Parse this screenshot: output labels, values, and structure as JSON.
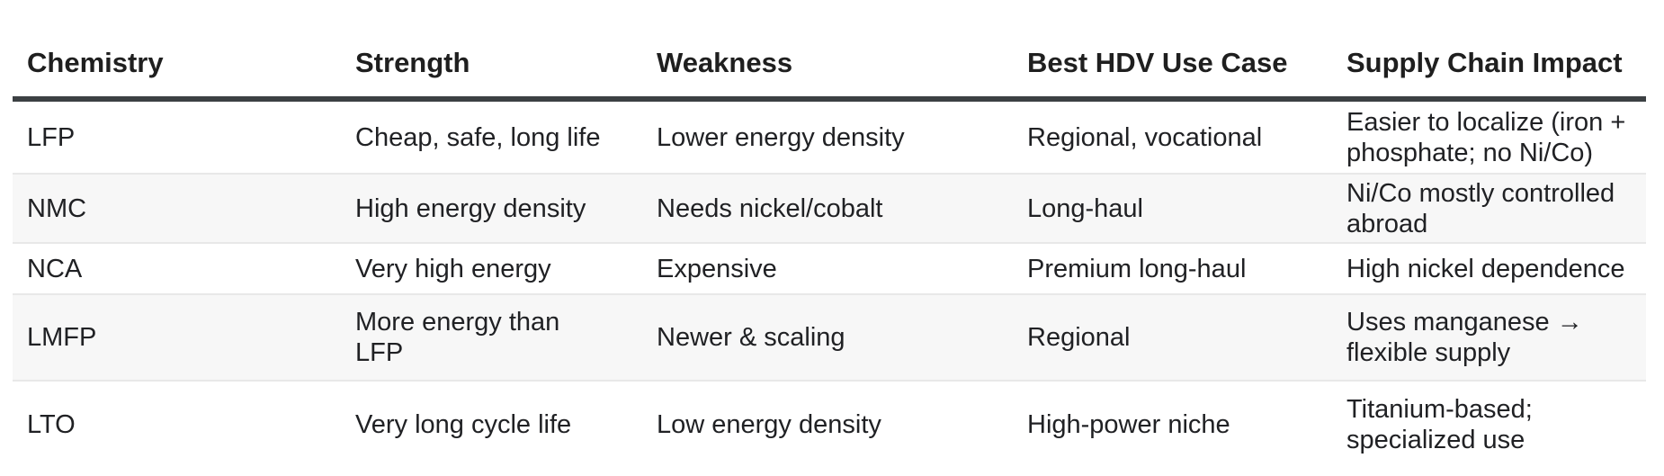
{
  "table": {
    "columns": [
      {
        "label": "Chemistry"
      },
      {
        "label": "Strength"
      },
      {
        "label": "Weakness"
      },
      {
        "label": "Best HDV Use Case"
      },
      {
        "label": "Supply Chain Impact"
      }
    ],
    "rows": [
      {
        "chemistry": "LFP",
        "strength": "Cheap, safe, long life",
        "weakness": "Lower energy density",
        "best_hdv_use_case": "Regional, vocational",
        "supply_chain_impact": "Easier to localize (iron +\nphosphate; no Ni/Co)"
      },
      {
        "chemistry": "NMC",
        "strength": "High energy density",
        "weakness": "Needs nickel/cobalt",
        "best_hdv_use_case": "Long-haul",
        "supply_chain_impact": "Ni/Co mostly controlled\nabroad"
      },
      {
        "chemistry": "NCA",
        "strength": "Very high energy",
        "weakness": "Expensive",
        "best_hdv_use_case": "Premium long-haul",
        "supply_chain_impact": "High nickel dependence"
      },
      {
        "chemistry": "LMFP",
        "strength": "More energy than\nLFP",
        "weakness": "Newer & scaling",
        "best_hdv_use_case": "Regional",
        "supply_chain_impact": "Uses manganese →\nflexible supply"
      },
      {
        "chemistry": "LTO",
        "strength": "Very long cycle life",
        "weakness": "Low energy density",
        "best_hdv_use_case": "High-power niche",
        "supply_chain_impact": "Titanium-based;\nspecialized use"
      }
    ],
    "colors": {
      "header_rule": "#3c4043",
      "row_divider": "#e8e8e8",
      "zebra_stripe": "#f7f7f7",
      "text": "#202124"
    }
  }
}
